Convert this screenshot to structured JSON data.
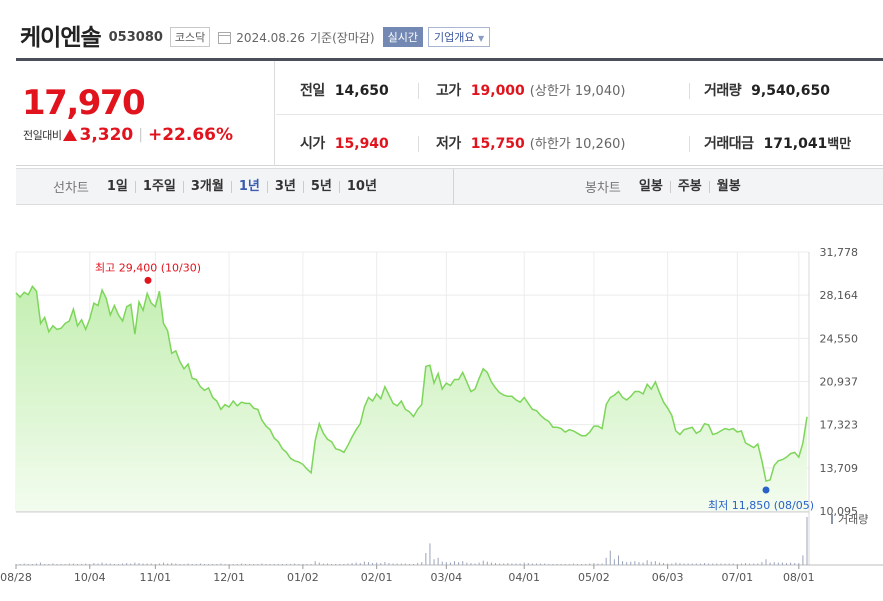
{
  "header": {
    "name": "케이엔솔",
    "code": "053080",
    "market": "코스닥",
    "date": "2024.08.26",
    "basis": "기준(장마감)",
    "realtime_label": "실시간",
    "company_info_label": "기업개요"
  },
  "price": {
    "current": "17,970",
    "change_label": "전일대비",
    "change": "3,320",
    "change_pct": "+22.66%",
    "prev_close_label": "전일",
    "prev_close": "14,650",
    "open_label": "시가",
    "open": "15,940",
    "high_label": "고가",
    "high": "19,000",
    "upper_limit": "(상한가 19,040)",
    "low_label": "저가",
    "low": "15,750",
    "lower_limit": "(하한가 10,260)",
    "volume_label": "거래량",
    "volume": "9,540,650",
    "amount_label": "거래대금",
    "amount": "171,041",
    "amount_unit": "백만"
  },
  "toolbar": {
    "line_chart_label": "선차트",
    "periods": [
      "1일",
      "1주일",
      "3개월",
      "1년",
      "3년",
      "5년",
      "10년"
    ],
    "active_period": "1년",
    "candle_label": "봉차트",
    "candles": [
      "일봉",
      "주봉",
      "월봉"
    ]
  },
  "colors": {
    "rise": "#e1141e",
    "line": "#7dd65a",
    "fill_top": "#c4efb2",
    "high_marker": "#e1141e",
    "low_marker": "#2a62c9",
    "active_tab": "#3b5bb0"
  },
  "chart_data": {
    "type": "area",
    "y_ticks": [
      "31,778",
      "28,164",
      "24,550",
      "20,937",
      "17,323",
      "13,709",
      "10,095"
    ],
    "ylim": [
      10095,
      31778
    ],
    "x_ticks": [
      "08/28",
      "10/04",
      "11/01",
      "12/01",
      "01/02",
      "02/01",
      "03/04",
      "04/01",
      "05/02",
      "06/03",
      "07/01",
      "08/01"
    ],
    "high_annotation": "최고 29,400 (10/30)",
    "low_annotation": "최저 11,850 (08/05)",
    "volume_label": "거래량",
    "series": [
      {
        "values": [
          28350,
          28000,
          28400,
          28200,
          28900,
          28500,
          25800,
          26300,
          25100,
          25600,
          25300,
          25400,
          25800,
          26000,
          27000,
          25600,
          26100,
          25300,
          26200,
          27500,
          27300,
          28600,
          27900,
          26500,
          27300,
          26500,
          26000,
          27200,
          27400,
          24900,
          27600,
          26900,
          28300,
          27500,
          27200,
          28500,
          25800,
          25200,
          23300,
          23500,
          22600,
          22000,
          22400,
          21200,
          21100,
          20500,
          20200,
          20400,
          19600,
          19300,
          18600,
          19000,
          18800,
          19300,
          18900,
          19200,
          19100,
          19100,
          18700,
          18600,
          17700,
          17200,
          16900,
          16200,
          15900,
          15300,
          15000,
          14500,
          14300,
          14200,
          14000,
          13600,
          13300,
          16000,
          17400,
          16600,
          16100,
          15900,
          15300,
          15200,
          15000,
          15600,
          16300,
          16900,
          17400,
          18800,
          19600,
          19300,
          19900,
          19500,
          20500,
          19800,
          19100,
          18900,
          19300,
          18600,
          18400,
          18000,
          18600,
          19000,
          22200,
          22300,
          20800,
          21600,
          20300,
          20800,
          20600,
          21100,
          21100,
          21700,
          20900,
          20100,
          20300,
          21200,
          22000,
          21700,
          20900,
          20400,
          20000,
          19800,
          19700,
          19700,
          19400,
          19200,
          19600,
          19100,
          18600,
          18500,
          18100,
          17800,
          17600,
          17100,
          17100,
          17000,
          16700,
          16900,
          16800,
          16600,
          16400,
          16400,
          16700,
          17200,
          17200,
          17000,
          19000,
          19600,
          19800,
          20100,
          19600,
          19400,
          19700,
          20100,
          20100,
          19900,
          20700,
          20300,
          20900,
          20000,
          19200,
          18700,
          18100,
          16800,
          16500,
          16900,
          17000,
          17100,
          16600,
          16800,
          17400,
          17300,
          16500,
          16600,
          16800,
          17000,
          16900,
          17000,
          16700,
          16800,
          15800,
          15600,
          15400,
          15700,
          14300,
          12600,
          12700,
          13900,
          14300,
          14400,
          14600,
          14900,
          15000,
          14600,
          15800,
          17970
        ]
      }
    ],
    "volume": [
      0.02,
      0.02,
      0.03,
      0.02,
      0.02,
      0.03,
      0.05,
      0.02,
      0.02,
      0.03,
      0.02,
      0.02,
      0.02,
      0.03,
      0.03,
      0.02,
      0.02,
      0.03,
      0.02,
      0.04,
      0.03,
      0.05,
      0.03,
      0.03,
      0.02,
      0.02,
      0.03,
      0.04,
      0.03,
      0.05,
      0.04,
      0.03,
      0.03,
      0.03,
      0.02,
      0.03,
      0.05,
      0.03,
      0.04,
      0.03,
      0.02,
      0.02,
      0.03,
      0.02,
      0.02,
      0.03,
      0.02,
      0.02,
      0.02,
      0.02,
      0.03,
      0.02,
      0.02,
      0.02,
      0.02,
      0.03,
      0.02,
      0.02,
      0.02,
      0.02,
      0.03,
      0.02,
      0.02,
      0.02,
      0.02,
      0.02,
      0.02,
      0.02,
      0.03,
      0.02,
      0.02,
      0.02,
      0.02,
      0.08,
      0.05,
      0.03,
      0.03,
      0.02,
      0.02,
      0.02,
      0.02,
      0.03,
      0.04,
      0.05,
      0.04,
      0.07,
      0.06,
      0.04,
      0.05,
      0.04,
      0.06,
      0.04,
      0.03,
      0.03,
      0.03,
      0.03,
      0.02,
      0.02,
      0.04,
      0.06,
      0.25,
      0.45,
      0.12,
      0.15,
      0.07,
      0.06,
      0.05,
      0.08,
      0.06,
      0.08,
      0.05,
      0.04,
      0.03,
      0.05,
      0.09,
      0.07,
      0.05,
      0.04,
      0.03,
      0.03,
      0.04,
      0.03,
      0.03,
      0.03,
      0.05,
      0.04,
      0.03,
      0.03,
      0.03,
      0.03,
      0.02,
      0.02,
      0.02,
      0.02,
      0.02,
      0.02,
      0.03,
      0.02,
      0.02,
      0.02,
      0.03,
      0.04,
      0.03,
      0.03,
      0.15,
      0.3,
      0.12,
      0.2,
      0.08,
      0.06,
      0.07,
      0.08,
      0.06,
      0.05,
      0.1,
      0.07,
      0.08,
      0.05,
      0.04,
      0.03,
      0.03,
      0.05,
      0.04,
      0.03,
      0.03,
      0.03,
      0.03,
      0.03,
      0.04,
      0.03,
      0.03,
      0.03,
      0.03,
      0.03,
      0.03,
      0.03,
      0.02,
      0.03,
      0.04,
      0.03,
      0.03,
      0.03,
      0.06,
      0.12,
      0.05,
      0.06,
      0.05,
      0.05,
      0.04,
      0.05,
      0.04,
      0.04,
      0.2,
      1.0
    ]
  }
}
